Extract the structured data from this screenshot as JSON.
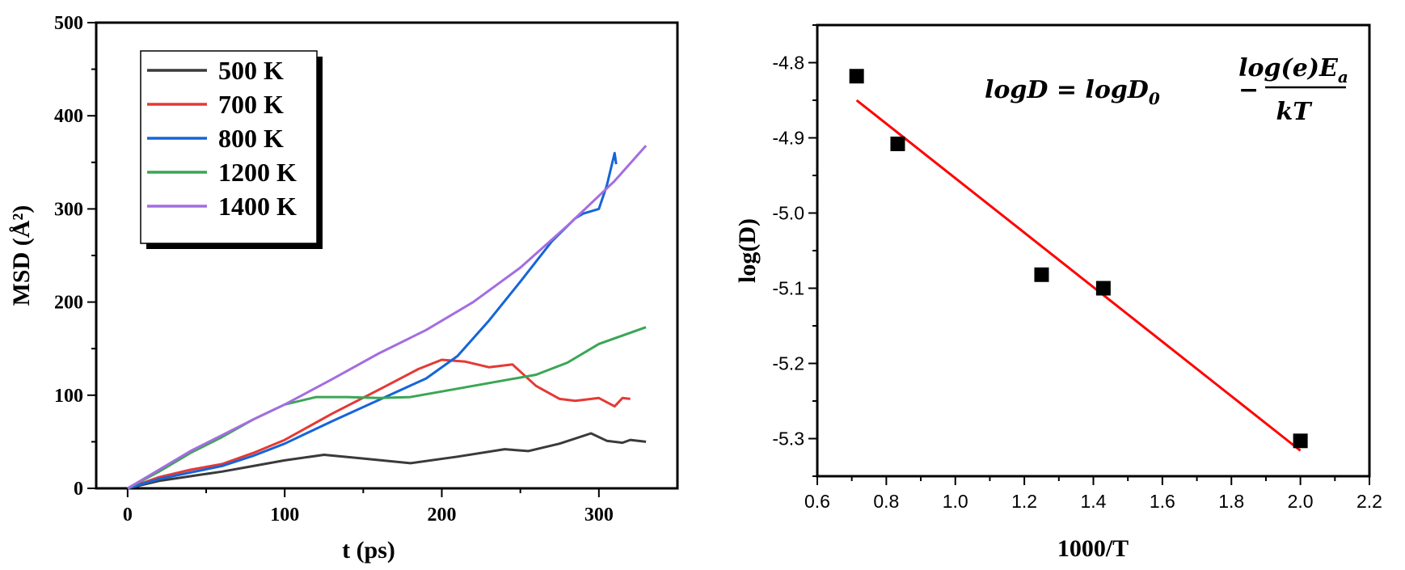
{
  "chart_data": [
    {
      "type": "line",
      "xlabel": "t (ps)",
      "ylabel": "MSD (Å²)",
      "xlim": [
        -20,
        350
      ],
      "ylim": [
        0,
        500
      ],
      "xticks": [
        0,
        100,
        200,
        300
      ],
      "yticks": [
        0,
        100,
        200,
        300,
        400,
        500
      ],
      "legend_position": "top-left",
      "series": [
        {
          "name": "500 K",
          "color": "#3a3a3a",
          "x": [
            0,
            20,
            40,
            60,
            80,
            100,
            125,
            150,
            180,
            210,
            240,
            255,
            275,
            295,
            305,
            315,
            320,
            330
          ],
          "y": [
            0,
            8,
            13,
            18,
            24,
            30,
            36,
            32,
            27,
            34,
            42,
            40,
            48,
            59,
            51,
            49,
            52,
            50
          ]
        },
        {
          "name": "700 K",
          "color": "#e53935",
          "x": [
            0,
            20,
            40,
            60,
            80,
            100,
            130,
            160,
            185,
            200,
            215,
            230,
            245,
            260,
            275,
            285,
            300,
            310,
            315,
            320
          ],
          "y": [
            0,
            12,
            20,
            26,
            38,
            52,
            80,
            106,
            128,
            138,
            136,
            130,
            133,
            110,
            96,
            94,
            97,
            88,
            97,
            96
          ]
        },
        {
          "name": "800 K",
          "color": "#1565d8",
          "x": [
            0,
            20,
            40,
            60,
            80,
            100,
            130,
            160,
            190,
            210,
            230,
            250,
            270,
            285,
            290,
            300,
            305,
            310,
            311
          ],
          "y": [
            0,
            10,
            17,
            24,
            35,
            48,
            72,
            95,
            118,
            142,
            180,
            222,
            265,
            290,
            295,
            300,
            325,
            360,
            348
          ]
        },
        {
          "name": "1200 K",
          "color": "#3aa655",
          "x": [
            0,
            20,
            40,
            60,
            80,
            100,
            120,
            140,
            160,
            180,
            200,
            230,
            260,
            280,
            300,
            330
          ],
          "y": [
            0,
            18,
            38,
            55,
            74,
            90,
            98,
            98,
            97,
            98,
            104,
            113,
            122,
            135,
            155,
            173
          ]
        },
        {
          "name": "1400 K",
          "color": "#a46de0",
          "x": [
            0,
            20,
            40,
            60,
            80,
            100,
            130,
            160,
            190,
            220,
            250,
            280,
            310,
            330
          ],
          "y": [
            0,
            20,
            40,
            57,
            74,
            90,
            117,
            145,
            170,
            200,
            237,
            282,
            330,
            368
          ]
        }
      ]
    },
    {
      "type": "scatter",
      "xlabel": "1000/T",
      "ylabel": "log(D)",
      "xlim": [
        0.6,
        2.2
      ],
      "ylim": [
        -5.35,
        -4.75
      ],
      "xticks": [
        "0.6",
        "0.8",
        "1.0",
        "1.2",
        "1.4",
        "1.6",
        "1.8",
        "2.0",
        "2.2"
      ],
      "yticks": [
        "-4.8",
        "-4.9",
        "-5.0",
        "-5.1",
        "-5.2",
        "-5.3"
      ],
      "points": {
        "x": [
          0.714,
          0.833,
          1.25,
          1.429,
          2.0
        ],
        "y": [
          -4.818,
          -4.908,
          -5.082,
          -5.1,
          -5.303
        ],
        "color": "#000000"
      },
      "fit_line": {
        "x": [
          0.714,
          2.0
        ],
        "y": [
          -4.85,
          -5.316
        ],
        "color": "#ff0000"
      },
      "annotation": "logD = logD₀ − log(e)Eₐ / kT",
      "equation": {
        "lhs": "logD = logD",
        "sub": "0",
        "minus": "−",
        "numerator": "log(e)E",
        "num_sub": "a",
        "denominator": "kT"
      }
    }
  ]
}
